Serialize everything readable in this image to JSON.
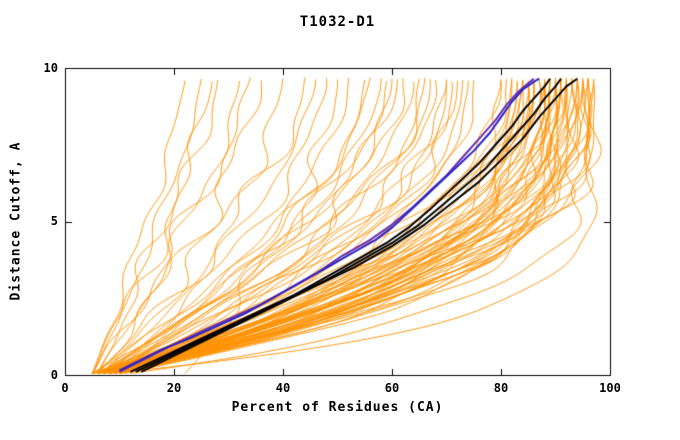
{
  "chart_data": {
    "type": "line",
    "title": "T1032-D1",
    "xlabel": "Percent of Residues (CA)",
    "ylabel": "Distance Cutoff, A",
    "xlim": [
      0,
      100
    ],
    "ylim": [
      0,
      10
    ],
    "xticks": [
      0,
      20,
      40,
      60,
      80,
      100
    ],
    "yticks": [
      0,
      5,
      10
    ],
    "grid": false,
    "legend": "none",
    "background": "#ffffff",
    "colors": {
      "frame": "#000000",
      "ensemble": "#ff9100",
      "black_highlight": "#000000",
      "blue_highlight": "#2a22cc",
      "purple_highlight": "#6a2faa"
    },
    "highlight_series": [
      {
        "name": "black-model-1",
        "color": "#000000",
        "points": [
          [
            12,
            0.1
          ],
          [
            18,
            0.6
          ],
          [
            24,
            1.1
          ],
          [
            30,
            1.6
          ],
          [
            36,
            2.1
          ],
          [
            42,
            2.6
          ],
          [
            48,
            3.2
          ],
          [
            54,
            3.8
          ],
          [
            59,
            4.3
          ],
          [
            63,
            4.8
          ],
          [
            67,
            5.4
          ],
          [
            70,
            5.9
          ],
          [
            73,
            6.4
          ],
          [
            76,
            6.9
          ],
          [
            79,
            7.5
          ],
          [
            82,
            8.1
          ],
          [
            84,
            8.6
          ],
          [
            86,
            9.0
          ],
          [
            88,
            9.4
          ],
          [
            89,
            9.65
          ]
        ]
      },
      {
        "name": "black-model-2",
        "color": "#000000",
        "points": [
          [
            13,
            0.1
          ],
          [
            20,
            0.7
          ],
          [
            27,
            1.3
          ],
          [
            34,
            1.9
          ],
          [
            41,
            2.5
          ],
          [
            48,
            3.1
          ],
          [
            54,
            3.7
          ],
          [
            60,
            4.3
          ],
          [
            65,
            4.9
          ],
          [
            69,
            5.5
          ],
          [
            73,
            6.1
          ],
          [
            77,
            6.7
          ],
          [
            80,
            7.3
          ],
          [
            83,
            7.9
          ],
          [
            86,
            8.5
          ],
          [
            88,
            9.0
          ],
          [
            90,
            9.4
          ],
          [
            91,
            9.65
          ]
        ]
      },
      {
        "name": "black-model-3",
        "color": "#000000",
        "points": [
          [
            14,
            0.1
          ],
          [
            22,
            0.8
          ],
          [
            30,
            1.5
          ],
          [
            38,
            2.2
          ],
          [
            46,
            2.9
          ],
          [
            53,
            3.5
          ],
          [
            60,
            4.2
          ],
          [
            66,
            4.9
          ],
          [
            71,
            5.6
          ],
          [
            76,
            6.3
          ],
          [
            80,
            7.0
          ],
          [
            84,
            7.7
          ],
          [
            87,
            8.4
          ],
          [
            90,
            9.0
          ],
          [
            92,
            9.4
          ],
          [
            94,
            9.65
          ]
        ]
      },
      {
        "name": "purple-model",
        "color": "#6a2faa",
        "points": [
          [
            10,
            0.1
          ],
          [
            15,
            0.55
          ],
          [
            20,
            1.0
          ],
          [
            26,
            1.5
          ],
          [
            31,
            1.9
          ],
          [
            36,
            2.3
          ],
          [
            41,
            2.8
          ],
          [
            46,
            3.3
          ],
          [
            51,
            3.9
          ],
          [
            56,
            4.4
          ],
          [
            60,
            4.9
          ],
          [
            64,
            5.5
          ],
          [
            67,
            6.0
          ],
          [
            70,
            6.5
          ],
          [
            73,
            7.1
          ],
          [
            76,
            7.7
          ],
          [
            79,
            8.3
          ],
          [
            81,
            8.8
          ],
          [
            83,
            9.2
          ],
          [
            85,
            9.5
          ],
          [
            86,
            9.65
          ]
        ]
      },
      {
        "name": "blue-model",
        "color": "#2a22cc",
        "points": [
          [
            10,
            0.15
          ],
          [
            14,
            0.5
          ],
          [
            18,
            0.85
          ],
          [
            23,
            1.2
          ],
          [
            28,
            1.6
          ],
          [
            33,
            2.0
          ],
          [
            38,
            2.5
          ],
          [
            43,
            3.0
          ],
          [
            48,
            3.5
          ],
          [
            53,
            4.0
          ],
          [
            57,
            4.4
          ],
          [
            60,
            4.8
          ],
          [
            63,
            5.3
          ],
          [
            66,
            5.8
          ],
          [
            69,
            6.3
          ],
          [
            72,
            6.8
          ],
          [
            75,
            7.3
          ],
          [
            78,
            7.9
          ],
          [
            80,
            8.4
          ],
          [
            82,
            8.9
          ],
          [
            84,
            9.3
          ],
          [
            86,
            9.55
          ],
          [
            87,
            9.65
          ]
        ]
      }
    ],
    "ensemble": {
      "name": "server-model-curves",
      "color": "#ff9100",
      "count": 89,
      "y_bottom": 0.05,
      "y_top": 9.62,
      "param_format": [
        "x_at_bottom_pct",
        "x_at_top_pct",
        "shape_exponent"
      ],
      "curves": [
        [
          6,
          88,
          2.6
        ],
        [
          7,
          92,
          2.9
        ],
        [
          8,
          85,
          2.3
        ],
        [
          5,
          90,
          2.8
        ],
        [
          9,
          94,
          3.0
        ],
        [
          7,
          80,
          2.1
        ],
        [
          6,
          83,
          2.4
        ],
        [
          8,
          91,
          2.7
        ],
        [
          10,
          95,
          3.1
        ],
        [
          7,
          87,
          2.5
        ],
        [
          6,
          93,
          3.0
        ],
        [
          9,
          89,
          2.6
        ],
        [
          5,
          82,
          2.2
        ],
        [
          8,
          96,
          3.2
        ],
        [
          7,
          84,
          2.3
        ],
        [
          6,
          90,
          2.7
        ],
        [
          10,
          92,
          2.8
        ],
        [
          9,
          86,
          2.4
        ],
        [
          7,
          94,
          3.0
        ],
        [
          5,
          88,
          2.5
        ],
        [
          8,
          81,
          2.1
        ],
        [
          6,
          95,
          3.1
        ],
        [
          9,
          91,
          2.7
        ],
        [
          7,
          89,
          2.6
        ],
        [
          10,
          97,
          3.3
        ],
        [
          6,
          86,
          2.4
        ],
        [
          8,
          93,
          2.9
        ],
        [
          5,
          84,
          2.2
        ],
        [
          9,
          96,
          3.1
        ],
        [
          7,
          90,
          2.6
        ],
        [
          6,
          82,
          2.1
        ],
        [
          8,
          88,
          2.5
        ],
        [
          10,
          94,
          2.9
        ],
        [
          7,
          92,
          2.8
        ],
        [
          5,
          85,
          2.3
        ],
        [
          9,
          87,
          2.4
        ],
        [
          6,
          91,
          2.7
        ],
        [
          8,
          95,
          3.0
        ],
        [
          7,
          83,
          2.2
        ],
        [
          10,
          89,
          2.5
        ],
        [
          6,
          96,
          3.2
        ],
        [
          9,
          93,
          2.8
        ],
        [
          5,
          80,
          2.0
        ],
        [
          8,
          90,
          2.6
        ],
        [
          7,
          86,
          2.3
        ],
        [
          11,
          95,
          2.9
        ],
        [
          6,
          88,
          2.4
        ],
        [
          9,
          92,
          2.7
        ],
        [
          7,
          97,
          3.4
        ],
        [
          5,
          91,
          2.6
        ],
        [
          8,
          84,
          2.2
        ],
        [
          10,
          90,
          2.5
        ],
        [
          6,
          94,
          3.0
        ],
        [
          9,
          85,
          2.3
        ],
        [
          7,
          88,
          2.5
        ],
        [
          6,
          70,
          2.0
        ],
        [
          8,
          65,
          1.9
        ],
        [
          7,
          74,
          2.1
        ],
        [
          5,
          60,
          1.8
        ],
        [
          9,
          72,
          2.0
        ],
        [
          6,
          58,
          1.7
        ],
        [
          8,
          68,
          1.9
        ],
        [
          7,
          62,
          1.8
        ],
        [
          10,
          75,
          2.1
        ],
        [
          6,
          66,
          1.8
        ],
        [
          8,
          73,
          2.0
        ],
        [
          5,
          56,
          1.6
        ],
        [
          9,
          70,
          1.9
        ],
        [
          7,
          64,
          1.7
        ],
        [
          6,
          61,
          1.6
        ],
        [
          8,
          71,
          1.9
        ],
        [
          7,
          67,
          1.8
        ],
        [
          9,
          59,
          1.6
        ],
        [
          5,
          25,
          1.3
        ],
        [
          6,
          32,
          1.4
        ],
        [
          7,
          40,
          1.5
        ],
        [
          5,
          22,
          1.2
        ],
        [
          8,
          48,
          1.6
        ],
        [
          6,
          36,
          1.4
        ],
        [
          7,
          52,
          1.7
        ],
        [
          5,
          28,
          1.3
        ],
        [
          6,
          44,
          1.5
        ],
        [
          8,
          55,
          1.7
        ],
        [
          5,
          34,
          1.3
        ],
        [
          7,
          46,
          1.5
        ],
        [
          6,
          27,
          1.2
        ],
        [
          22,
          50,
          1.6
        ],
        [
          8,
          97,
          6.0
        ],
        [
          12,
          96,
          4.5
        ]
      ]
    }
  }
}
